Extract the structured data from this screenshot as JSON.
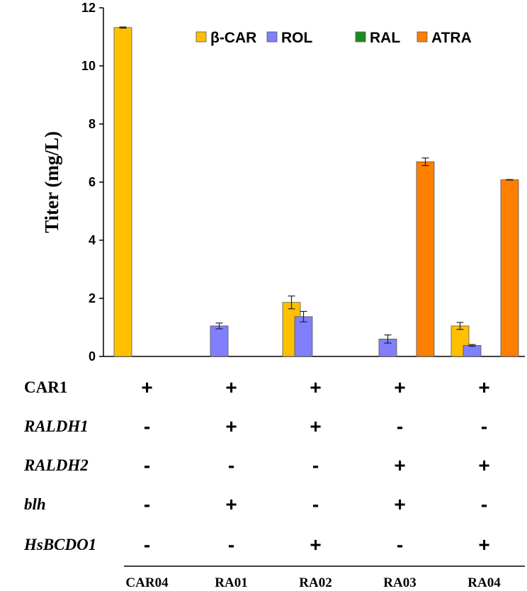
{
  "chart_data": {
    "type": "bar",
    "ylabel": "Titer (mg/L)",
    "xlabel": "",
    "title": "",
    "ylim": [
      0,
      12
    ],
    "yticks": [
      0,
      2,
      4,
      6,
      8,
      10,
      12
    ],
    "categories": [
      "CAR04",
      "RA01",
      "RA02",
      "RA03",
      "RA04"
    ],
    "legend_position": "top-right",
    "grid": false,
    "series": [
      {
        "name": "β-CAR",
        "color": "#FFC000",
        "values": [
          11.32,
          null,
          1.86,
          null,
          1.05
        ],
        "errors": [
          0.02,
          null,
          0.22,
          null,
          0.12
        ]
      },
      {
        "name": "ROL",
        "color": "#7F7FFF",
        "values": [
          null,
          1.05,
          1.37,
          0.6,
          0.38
        ],
        "errors": [
          null,
          0.1,
          0.18,
          0.14,
          0.03
        ]
      },
      {
        "name": "RAL",
        "color": "#1E8B1E",
        "values": [
          null,
          null,
          null,
          null,
          null
        ],
        "errors": [
          null,
          null,
          null,
          null,
          null
        ]
      },
      {
        "name": "ATRA",
        "color": "#FF7F00",
        "values": [
          null,
          null,
          null,
          6.7,
          6.08
        ],
        "errors": [
          null,
          null,
          null,
          0.13,
          0.01
        ]
      }
    ],
    "genotype_table": {
      "rows": [
        {
          "label": "CAR1",
          "italic": false,
          "marks": [
            "+",
            "+",
            "+",
            "+",
            "+"
          ]
        },
        {
          "label": "RALDH1",
          "italic": true,
          "marks": [
            "-",
            "+",
            "+",
            "-",
            "-"
          ]
        },
        {
          "label": "RALDH2",
          "italic": true,
          "marks": [
            "-",
            "-",
            "-",
            "+",
            "+"
          ]
        },
        {
          "label": "blh",
          "italic": true,
          "marks": [
            "-",
            "+",
            "-",
            "+",
            "-"
          ]
        },
        {
          "label": "HsBCDO1",
          "italic": true,
          "marks": [
            "-",
            "-",
            "+",
            "-",
            "+"
          ]
        }
      ]
    }
  }
}
